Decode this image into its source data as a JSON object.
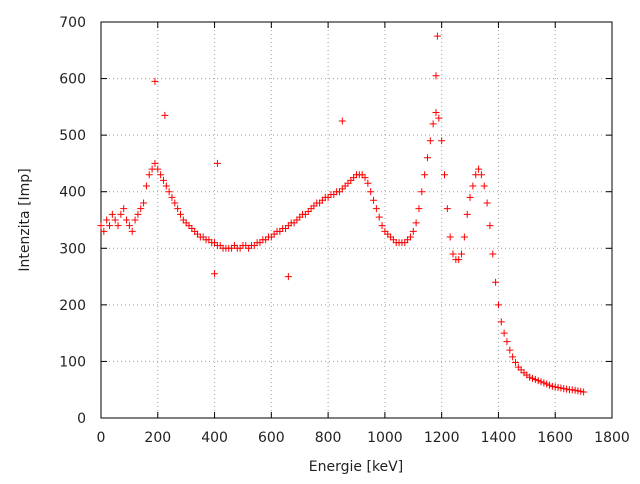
{
  "chart_data": {
    "type": "scatter",
    "title": "",
    "xlabel": "Energie [keV]",
    "ylabel": "Intenzita [Imp]",
    "xlim": [
      0,
      1800
    ],
    "ylim": [
      0,
      700
    ],
    "xticks": [
      0,
      200,
      400,
      600,
      800,
      1000,
      1200,
      1400,
      1600,
      1800
    ],
    "yticks": [
      0,
      100,
      200,
      300,
      400,
      500,
      600,
      700
    ],
    "grid": true,
    "marker": "+",
    "color": "#ff0000",
    "points": [
      [
        0,
        340
      ],
      [
        10,
        330
      ],
      [
        20,
        350
      ],
      [
        30,
        340
      ],
      [
        40,
        360
      ],
      [
        50,
        350
      ],
      [
        60,
        340
      ],
      [
        70,
        360
      ],
      [
        80,
        370
      ],
      [
        90,
        350
      ],
      [
        100,
        340
      ],
      [
        110,
        330
      ],
      [
        120,
        350
      ],
      [
        130,
        360
      ],
      [
        140,
        370
      ],
      [
        150,
        380
      ],
      [
        160,
        410
      ],
      [
        170,
        430
      ],
      [
        180,
        440
      ],
      [
        190,
        450
      ],
      [
        200,
        440
      ],
      [
        210,
        430
      ],
      [
        220,
        420
      ],
      [
        230,
        410
      ],
      [
        240,
        400
      ],
      [
        250,
        390
      ],
      [
        260,
        380
      ],
      [
        270,
        370
      ],
      [
        280,
        360
      ],
      [
        290,
        350
      ],
      [
        300,
        345
      ],
      [
        310,
        340
      ],
      [
        320,
        335
      ],
      [
        330,
        330
      ],
      [
        340,
        325
      ],
      [
        350,
        320
      ],
      [
        360,
        320
      ],
      [
        370,
        315
      ],
      [
        380,
        315
      ],
      [
        390,
        310
      ],
      [
        400,
        310
      ],
      [
        410,
        305
      ],
      [
        420,
        305
      ],
      [
        430,
        300
      ],
      [
        440,
        300
      ],
      [
        450,
        300
      ],
      [
        460,
        300
      ],
      [
        470,
        305
      ],
      [
        480,
        300
      ],
      [
        490,
        300
      ],
      [
        500,
        305
      ],
      [
        510,
        305
      ],
      [
        520,
        300
      ],
      [
        530,
        305
      ],
      [
        540,
        305
      ],
      [
        550,
        310
      ],
      [
        560,
        310
      ],
      [
        570,
        315
      ],
      [
        580,
        315
      ],
      [
        590,
        320
      ],
      [
        600,
        320
      ],
      [
        610,
        325
      ],
      [
        620,
        330
      ],
      [
        630,
        330
      ],
      [
        640,
        335
      ],
      [
        650,
        335
      ],
      [
        660,
        340
      ],
      [
        670,
        345
      ],
      [
        680,
        345
      ],
      [
        690,
        350
      ],
      [
        700,
        355
      ],
      [
        710,
        360
      ],
      [
        720,
        360
      ],
      [
        730,
        365
      ],
      [
        740,
        370
      ],
      [
        750,
        375
      ],
      [
        760,
        380
      ],
      [
        770,
        380
      ],
      [
        780,
        385
      ],
      [
        790,
        390
      ],
      [
        800,
        390
      ],
      [
        810,
        395
      ],
      [
        820,
        395
      ],
      [
        830,
        400
      ],
      [
        840,
        400
      ],
      [
        850,
        405
      ],
      [
        860,
        410
      ],
      [
        870,
        415
      ],
      [
        880,
        420
      ],
      [
        890,
        425
      ],
      [
        900,
        430
      ],
      [
        910,
        430
      ],
      [
        920,
        430
      ],
      [
        930,
        425
      ],
      [
        940,
        415
      ],
      [
        950,
        400
      ],
      [
        960,
        385
      ],
      [
        970,
        370
      ],
      [
        980,
        355
      ],
      [
        990,
        340
      ],
      [
        1000,
        330
      ],
      [
        1010,
        325
      ],
      [
        1020,
        320
      ],
      [
        1030,
        315
      ],
      [
        1040,
        310
      ],
      [
        1050,
        310
      ],
      [
        1060,
        310
      ],
      [
        1070,
        310
      ],
      [
        1080,
        315
      ],
      [
        1090,
        320
      ],
      [
        1100,
        330
      ],
      [
        1110,
        345
      ],
      [
        1120,
        370
      ],
      [
        1130,
        400
      ],
      [
        1140,
        430
      ],
      [
        1150,
        460
      ],
      [
        1160,
        490
      ],
      [
        1170,
        520
      ],
      [
        1180,
        540
      ],
      [
        1190,
        530
      ],
      [
        1200,
        490
      ],
      [
        1210,
        430
      ],
      [
        1220,
        370
      ],
      [
        1230,
        320
      ],
      [
        1240,
        290
      ],
      [
        1250,
        280
      ],
      [
        1260,
        280
      ],
      [
        1270,
        290
      ],
      [
        1280,
        320
      ],
      [
        1290,
        360
      ],
      [
        1300,
        390
      ],
      [
        1310,
        410
      ],
      [
        1320,
        430
      ],
      [
        1330,
        440
      ],
      [
        1340,
        430
      ],
      [
        1350,
        410
      ],
      [
        1360,
        380
      ],
      [
        1370,
        340
      ],
      [
        1380,
        290
      ],
      [
        1390,
        240
      ],
      [
        1400,
        200
      ],
      [
        1410,
        170
      ],
      [
        1420,
        150
      ],
      [
        1430,
        135
      ],
      [
        1440,
        120
      ],
      [
        1450,
        108
      ],
      [
        1460,
        98
      ],
      [
        1470,
        90
      ],
      [
        1480,
        85
      ],
      [
        1490,
        80
      ],
      [
        1500,
        76
      ],
      [
        1510,
        72
      ],
      [
        1520,
        70
      ],
      [
        1530,
        68
      ],
      [
        1540,
        66
      ],
      [
        1550,
        64
      ],
      [
        1560,
        62
      ],
      [
        1570,
        60
      ],
      [
        1580,
        58
      ],
      [
        1590,
        56
      ],
      [
        1600,
        55
      ],
      [
        1610,
        54
      ],
      [
        1620,
        53
      ],
      [
        1630,
        52
      ],
      [
        1640,
        51
      ],
      [
        1650,
        50
      ],
      [
        1660,
        50
      ],
      [
        1670,
        49
      ],
      [
        1680,
        48
      ],
      [
        1690,
        47
      ],
      [
        1700,
        46
      ],
      [
        190,
        595
      ],
      [
        1185,
        675
      ],
      [
        850,
        525
      ],
      [
        225,
        535
      ],
      [
        410,
        450
      ],
      [
        1180,
        605
      ],
      [
        660,
        250
      ],
      [
        400,
        255
      ]
    ]
  }
}
